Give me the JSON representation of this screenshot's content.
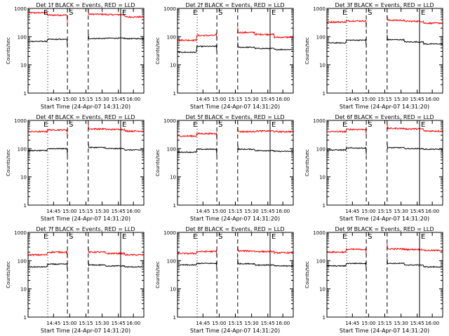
{
  "chart_data": [
    {
      "type": "line",
      "title": "Det 1f BLACK = Events, RED = LLD",
      "xlabel": "Start Time (24-Apr-07 14:31:20)",
      "ylabel": "Counts/sec",
      "yscale": "log",
      "ylim": [
        1,
        1000
      ],
      "xticklabels": [
        "14:45",
        "15:00",
        "15:15",
        "15:30",
        "15:45",
        "16:00"
      ],
      "yticklabels": [
        "1",
        "10",
        "100",
        "1000"
      ],
      "markers": [
        {
          "label": "E",
          "style": "dotted"
        },
        {
          "label": "S",
          "style": "dashed"
        },
        {
          "label": "",
          "style": "dashed"
        },
        {
          "label": "E",
          "style": "solid"
        }
      ],
      "series": [
        {
          "name": "LLD",
          "color": "#ff0000",
          "levels": [
            700,
            580,
            600,
            620,
            600,
            500
          ]
        },
        {
          "name": "Events",
          "color": "#000000",
          "levels": [
            68,
            80,
            82,
            86,
            88,
            85
          ]
        }
      ]
    },
    {
      "type": "line",
      "title": "Det 2f BLACK = Events, RED = LLD",
      "xlabel": "Start Time (24-Apr-07 14:31:20)",
      "ylabel": "Counts/sec",
      "yscale": "log",
      "ylim": [
        1,
        1000
      ],
      "xticklabels": [
        "14:45",
        "15:00",
        "15:15",
        "15:30",
        "15:45",
        "16:00"
      ],
      "yticklabels": [
        "1",
        "10",
        "100",
        "1000"
      ],
      "markers": [
        {
          "label": "E",
          "style": "dotted"
        },
        {
          "label": "S",
          "style": "dashed"
        },
        {
          "label": "",
          "style": "dashed"
        },
        {
          "label": "E",
          "style": "solid"
        }
      ],
      "series": [
        {
          "name": "LLD",
          "color": "#ff0000",
          "levels": [
            75,
            110,
            130,
            140,
            120,
            95
          ]
        },
        {
          "name": "Events",
          "color": "#000000",
          "levels": [
            28,
            45,
            50,
            42,
            38,
            35
          ]
        }
      ]
    },
    {
      "type": "line",
      "title": "Det 3f BLACK = Events, RED = LLD",
      "xlabel": "Start Time (24-Apr-07 14:31:20)",
      "ylabel": "Counts/sec",
      "yscale": "log",
      "ylim": [
        1,
        1000
      ],
      "xticklabels": [
        "14:45",
        "15:00",
        "15:15",
        "15:30",
        "15:45",
        "16:00"
      ],
      "yticklabels": [
        "1",
        "10",
        "100",
        "1000"
      ],
      "markers": [
        {
          "label": "E",
          "style": "dotted"
        },
        {
          "label": "S",
          "style": "dashed"
        },
        {
          "label": "",
          "style": "dashed"
        },
        {
          "label": "E",
          "style": "solid"
        }
      ],
      "series": [
        {
          "name": "LLD",
          "color": "#ff0000",
          "levels": [
            330,
            360,
            370,
            380,
            350,
            300
          ]
        },
        {
          "name": "Events",
          "color": "#000000",
          "levels": [
            60,
            75,
            80,
            78,
            65,
            55
          ]
        }
      ]
    },
    {
      "type": "line",
      "title": "Det 4f BLACK = Events, RED = LLD",
      "xlabel": "Start Time (24-Apr-07 14:31:20)",
      "ylabel": "Counts/sec",
      "yscale": "log",
      "ylim": [
        1,
        1000
      ],
      "xticklabels": [
        "14:45",
        "15:00",
        "15:15",
        "15:30",
        "15:45",
        "16:00"
      ],
      "yticklabels": [
        "1",
        "10",
        "100",
        "1000"
      ],
      "markers": [
        {
          "label": "E",
          "style": "dotted"
        },
        {
          "label": "S",
          "style": "dashed"
        },
        {
          "label": "",
          "style": "dashed"
        },
        {
          "label": "E",
          "style": "solid"
        }
      ],
      "series": [
        {
          "name": "LLD",
          "color": "#ff0000",
          "levels": [
            400,
            460,
            480,
            500,
            480,
            420
          ]
        },
        {
          "name": "Events",
          "color": "#000000",
          "levels": [
            85,
            100,
            105,
            110,
            100,
            90
          ]
        }
      ]
    },
    {
      "type": "line",
      "title": "Det 5f BLACK = Events, RED = LLD",
      "xlabel": "Start Time (24-Apr-07 14:31:20)",
      "ylabel": "Counts/sec",
      "yscale": "log",
      "ylim": [
        1,
        1000
      ],
      "xticklabels": [
        "14:45",
        "15:00",
        "15:15",
        "15:30",
        "15:45",
        "16:00"
      ],
      "yticklabels": [
        "1",
        "10",
        "100",
        "1000"
      ],
      "markers": [
        {
          "label": "E",
          "style": "dotted"
        },
        {
          "label": "S",
          "style": "dashed"
        },
        {
          "label": "",
          "style": "dashed"
        },
        {
          "label": "E",
          "style": "solid"
        }
      ],
      "series": [
        {
          "name": "LLD",
          "color": "#ff0000",
          "levels": [
            280,
            340,
            360,
            400,
            420,
            400
          ]
        },
        {
          "name": "Events",
          "color": "#000000",
          "levels": [
            75,
            95,
            100,
            95,
            85,
            80
          ]
        }
      ]
    },
    {
      "type": "line",
      "title": "Det 6f BLACK = Events, RED = LLD",
      "xlabel": "Start Time (24-Apr-07 14:31:20)",
      "ylabel": "Counts/sec",
      "yscale": "log",
      "ylim": [
        1,
        1000
      ],
      "xticklabels": [
        "14:45",
        "15:00",
        "15:15",
        "15:30",
        "15:45",
        "16:00"
      ],
      "yticklabels": [
        "1",
        "10",
        "100",
        "1000"
      ],
      "markers": [
        {
          "label": "E",
          "style": "dotted"
        },
        {
          "label": "S",
          "style": "dashed"
        },
        {
          "label": "",
          "style": "dashed"
        },
        {
          "label": "E",
          "style": "solid"
        }
      ],
      "series": [
        {
          "name": "LLD",
          "color": "#ff0000",
          "levels": [
            400,
            480,
            520,
            520,
            500,
            420
          ]
        },
        {
          "name": "Events",
          "color": "#000000",
          "levels": [
            90,
            105,
            110,
            108,
            100,
            95
          ]
        }
      ]
    },
    {
      "type": "line",
      "title": "Det 7f BLACK = Events, RED = LLD",
      "xlabel": "Start Time (24-Apr-07 14:31:20)",
      "ylabel": "Counts/sec",
      "yscale": "log",
      "ylim": [
        1,
        1000
      ],
      "xticklabels": [
        "14:45",
        "15:00",
        "15:15",
        "15:30",
        "15:45",
        "16:00"
      ],
      "yticklabels": [
        "1",
        "10",
        "100",
        "1000"
      ],
      "markers": [
        {
          "label": "E",
          "style": "dotted"
        },
        {
          "label": "S",
          "style": "dashed"
        },
        {
          "label": "",
          "style": "dashed"
        },
        {
          "label": "E",
          "style": "solid"
        }
      ],
      "series": [
        {
          "name": "LLD",
          "color": "#ff0000",
          "levels": [
            160,
            200,
            220,
            200,
            180,
            160
          ]
        },
        {
          "name": "Events",
          "color": "#000000",
          "levels": [
            60,
            75,
            80,
            70,
            65,
            60
          ]
        }
      ]
    },
    {
      "type": "line",
      "title": "Det 8f BLACK = Events, RED = LLD",
      "xlabel": "Start Time (24-Apr-07 14:31:20)",
      "ylabel": "Counts/sec",
      "yscale": "log",
      "ylim": [
        1,
        1000
      ],
      "xticklabels": [
        "14:45",
        "15:00",
        "15:15",
        "15:30",
        "15:45",
        "16:00"
      ],
      "yticklabels": [
        "1",
        "10",
        "100",
        "1000"
      ],
      "markers": [
        {
          "label": "E",
          "style": "dotted"
        },
        {
          "label": "S",
          "style": "dashed"
        },
        {
          "label": "",
          "style": "dashed"
        },
        {
          "label": "E",
          "style": "solid"
        }
      ],
      "series": [
        {
          "name": "LLD",
          "color": "#ff0000",
          "levels": [
            180,
            210,
            230,
            220,
            210,
            190
          ]
        },
        {
          "name": "Events",
          "color": "#000000",
          "levels": [
            70,
            80,
            85,
            78,
            70,
            65
          ]
        }
      ]
    },
    {
      "type": "line",
      "title": "Det 9f BLACK = Events, RED = LLD",
      "xlabel": "Start Time (24-Apr-07 14:31:20)",
      "ylabel": "Counts/sec",
      "yscale": "log",
      "ylim": [
        1,
        1000
      ],
      "xticklabels": [
        "14:45",
        "15:00",
        "15:15",
        "15:30",
        "15:45",
        "16:00"
      ],
      "yticklabels": [
        "1",
        "10",
        "100",
        "1000"
      ],
      "markers": [
        {
          "label": "E",
          "style": "dotted"
        },
        {
          "label": "S",
          "style": "dashed"
        },
        {
          "label": "",
          "style": "dashed"
        },
        {
          "label": "E",
          "style": "solid"
        }
      ],
      "series": [
        {
          "name": "LLD",
          "color": "#ff0000",
          "levels": [
            200,
            250,
            270,
            260,
            250,
            230
          ]
        },
        {
          "name": "Events",
          "color": "#000000",
          "levels": [
            65,
            80,
            85,
            80,
            70,
            60
          ]
        }
      ]
    }
  ]
}
